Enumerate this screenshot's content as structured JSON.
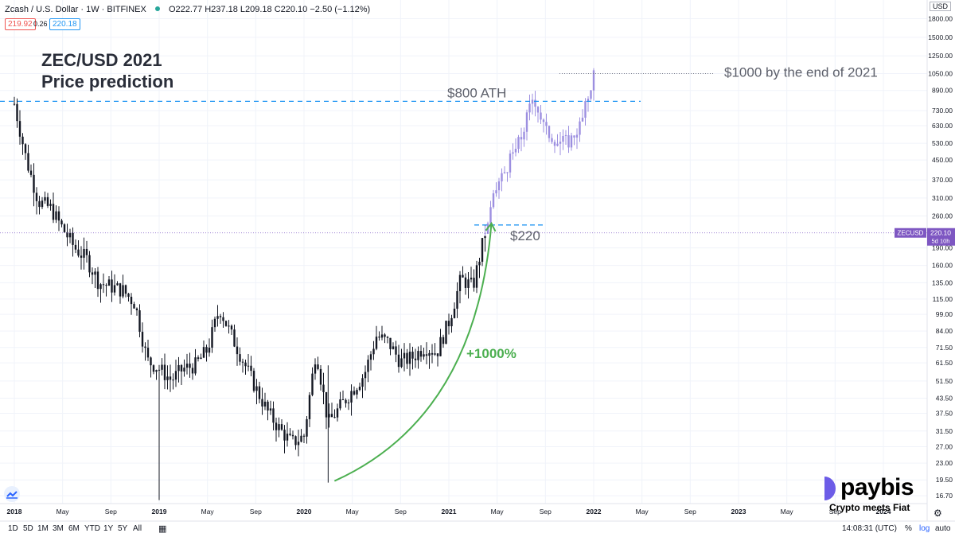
{
  "header": {
    "symbol": "Zcash / U.S. Dollar · 1W · BITFINEX",
    "ohlc": "O222.77 H237.18 L209.18 C220.10 −2.50 (−1.12%)",
    "bid": "219.92",
    "spread": "0.26",
    "ask": "220.18",
    "currency": "USD"
  },
  "title": {
    "line1": "ZEC/USD 2021",
    "line2": "Price prediction"
  },
  "price_tag": {
    "symbol": "ZECUSD",
    "price": "220.10",
    "countdown": "5d 10h"
  },
  "timeframes": [
    "1D",
    "5D",
    "1M",
    "3M",
    "6M",
    "YTD",
    "1Y",
    "5Y",
    "All"
  ],
  "footer": {
    "time": "14:08:31 (UTC)",
    "percent": "%",
    "log": "log",
    "auto": "auto"
  },
  "brand": {
    "name": "paybis",
    "tagline": "Crypto meets Fiat"
  },
  "colors": {
    "up": "#131722",
    "prediction": "#9c8fe0",
    "ath_line": "#2196f3",
    "arrow": "#4caf50",
    "price_tag": "#7e57c2"
  },
  "chart_data": {
    "type": "candlestick",
    "y_scale": "log",
    "ylim": [
      16,
      2100
    ],
    "ytick_labels": [
      "1800.00",
      "1500.00",
      "1250.00",
      "1050.00",
      "890.00",
      "730.00",
      "630.00",
      "530.00",
      "450.00",
      "370.00",
      "310.00",
      "260.00",
      "190.00",
      "160.00",
      "135.00",
      "115.00",
      "99.00",
      "84.00",
      "71.50",
      "61.50",
      "51.50",
      "43.50",
      "37.50",
      "31.50",
      "27.00",
      "23.00",
      "19.50",
      "16.70"
    ],
    "xtick_labels": [
      "2018",
      "May",
      "Sep",
      "2019",
      "May",
      "Sep",
      "2020",
      "May",
      "Sep",
      "2021",
      "May",
      "Sep",
      "2022",
      "May",
      "Sep",
      "2023",
      "May",
      "Sep",
      "2024"
    ],
    "xlim": [
      "2018-01",
      "2024-01"
    ],
    "historical_weekly_close_path": [
      [
        "2018-01",
        780
      ],
      [
        "2018-02",
        450
      ],
      [
        "2018-03",
        300
      ],
      [
        "2018-04",
        280
      ],
      [
        "2018-05",
        230
      ],
      [
        "2018-06",
        190
      ],
      [
        "2018-07",
        170
      ],
      [
        "2018-08",
        135
      ],
      [
        "2018-09",
        130
      ],
      [
        "2018-10",
        125
      ],
      [
        "2018-11",
        110
      ],
      [
        "2018-12",
        63
      ],
      [
        "2019-01",
        58
      ],
      [
        "2019-02",
        52
      ],
      [
        "2019-03",
        58
      ],
      [
        "2019-04",
        60
      ],
      [
        "2019-05",
        70
      ],
      [
        "2019-06",
        105
      ],
      [
        "2019-07",
        80
      ],
      [
        "2019-08",
        62
      ],
      [
        "2019-09",
        48
      ],
      [
        "2019-10",
        38
      ],
      [
        "2019-11",
        32
      ],
      [
        "2019-12",
        28
      ],
      [
        "2020-01",
        30
      ],
      [
        "2020-02",
        70
      ],
      [
        "2020-03",
        34
      ],
      [
        "2020-04",
        40
      ],
      [
        "2020-05",
        47
      ],
      [
        "2020-06",
        55
      ],
      [
        "2020-07",
        80
      ],
      [
        "2020-08",
        75
      ],
      [
        "2020-09",
        62
      ],
      [
        "2020-10",
        65
      ],
      [
        "2020-11",
        72
      ],
      [
        "2020-12",
        68
      ],
      [
        "2021-01",
        92
      ],
      [
        "2021-02",
        140
      ],
      [
        "2021-03",
        130
      ],
      [
        "2021-04",
        220
      ]
    ],
    "prediction_weekly_close_path": [
      [
        "2021-04",
        220
      ],
      [
        "2021-05",
        350
      ],
      [
        "2021-06",
        440
      ],
      [
        "2021-07",
        560
      ],
      [
        "2021-08",
        850
      ],
      [
        "2021-09",
        600
      ],
      [
        "2021-10",
        540
      ],
      [
        "2021-11",
        540
      ],
      [
        "2021-12",
        650
      ],
      [
        "2022-01",
        1050
      ]
    ],
    "low_wicks": [
      [
        "2019-01",
        16
      ],
      [
        "2020-03",
        19
      ]
    ],
    "annotations": [
      {
        "text": "$800 ATH",
        "price": 800,
        "style": "dashed",
        "color": "#2196f3"
      },
      {
        "text": "$1000 by the end of 2021",
        "price": 1050,
        "style": "dotted",
        "color": "#787b86"
      },
      {
        "text": "$220",
        "price": 220,
        "style": "dashed",
        "color": "#2196f3"
      },
      {
        "text": "+1000%",
        "color": "#4caf50",
        "from": [
          "2020-03",
          19
        ],
        "to": [
          "2021-04",
          220
        ]
      }
    ],
    "current_price": 220.1
  }
}
